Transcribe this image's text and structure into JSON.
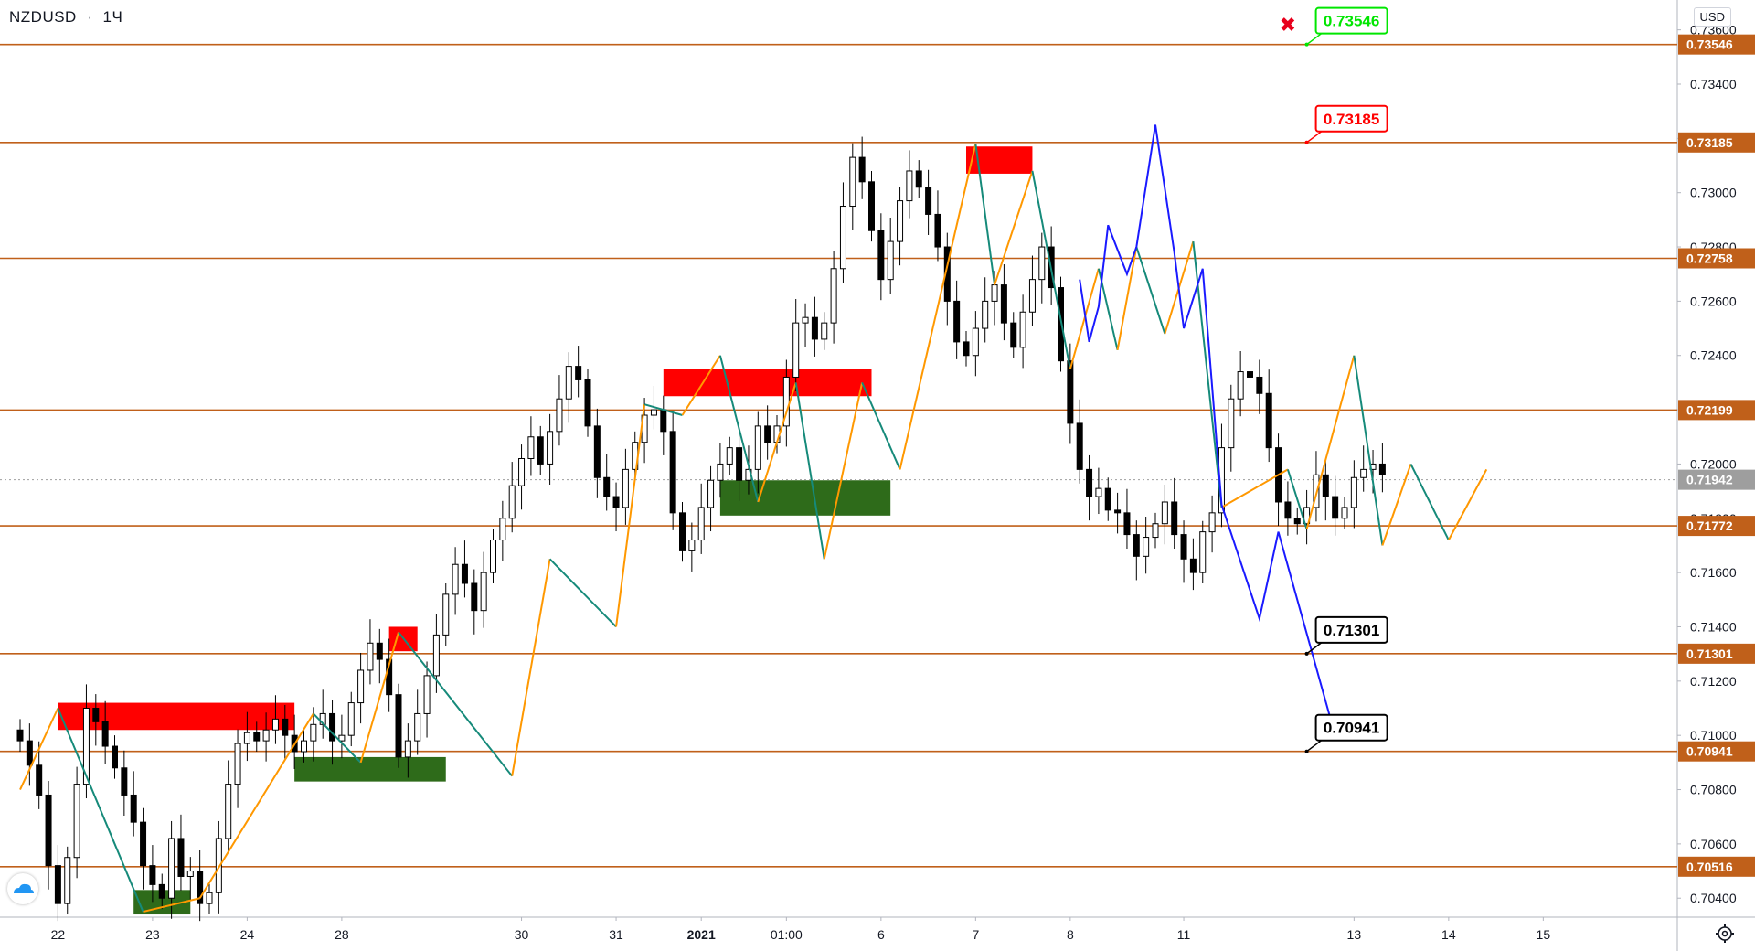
{
  "header": {
    "symbol": "NZDUSD",
    "separator": "·",
    "interval": "1Ч",
    "currency": "USD"
  },
  "colors": {
    "level_line": "#c0601a",
    "level_badge": "#c0601a",
    "up_leg": "#ff9800",
    "down_leg": "#168a7a",
    "forecast": "#1a1aff",
    "resistance_zone": "#ff0000",
    "support_zone": "#2e6b1a",
    "candle": "#000000",
    "current_price_badge": "#9e9e9e",
    "target_up": "#00e600",
    "target_stop": "#ff0000",
    "target_down": "#000000"
  },
  "chart_data": {
    "type": "candlestick",
    "instrument": "NZDUSD",
    "timeframe": "1Ч",
    "ylim": [
      0.7033,
      0.7371
    ],
    "y_ticks": [
      "0.70400",
      "0.70600",
      "0.70800",
      "0.71000",
      "0.71200",
      "0.71400",
      "0.71600",
      "0.71800",
      "0.72000",
      "0.72200",
      "0.72400",
      "0.72600",
      "0.72800",
      "0.73000",
      "0.73200",
      "0.73400",
      "0.73600"
    ],
    "x_ticks": [
      {
        "label": "22",
        "bar": 4
      },
      {
        "label": "23",
        "bar": 14
      },
      {
        "label": "24",
        "bar": 24
      },
      {
        "label": "28",
        "bar": 34
      },
      {
        "label": "30",
        "bar": 53
      },
      {
        "label": "31",
        "bar": 63
      },
      {
        "label": "2021",
        "bar": 72,
        "bold": true
      },
      {
        "label": "01:00",
        "bar": 81
      },
      {
        "label": "6",
        "bar": 91
      },
      {
        "label": "7",
        "bar": 101
      },
      {
        "label": "8",
        "bar": 111
      },
      {
        "label": "11",
        "bar": 123
      },
      {
        "label": "13",
        "bar": 141
      },
      {
        "label": "14",
        "bar": 151
      },
      {
        "label": "15",
        "bar": 161
      }
    ],
    "levels": [
      "0.73546",
      "0.73185",
      "0.72758",
      "0.72199",
      "0.71772",
      "0.71301",
      "0.70941",
      "0.70516"
    ],
    "current_price": "0.71942",
    "closes": [
      0.7098,
      0.7089,
      0.7078,
      0.7052,
      0.7038,
      0.7055,
      0.7082,
      0.711,
      0.7105,
      0.7096,
      0.7088,
      0.7078,
      0.7068,
      0.7052,
      0.7045,
      0.704,
      0.7062,
      0.7048,
      0.705,
      0.7038,
      0.7042,
      0.7062,
      0.7082,
      0.7097,
      0.7101,
      0.7098,
      0.7102,
      0.7106,
      0.71,
      0.7094,
      0.7098,
      0.7104,
      0.7108,
      0.7098,
      0.71,
      0.7112,
      0.7124,
      0.7134,
      0.7128,
      0.7115,
      0.7092,
      0.7098,
      0.7108,
      0.7122,
      0.7137,
      0.7152,
      0.7163,
      0.7156,
      0.7146,
      0.716,
      0.7172,
      0.718,
      0.7192,
      0.7202,
      0.721,
      0.72,
      0.7212,
      0.7224,
      0.7236,
      0.7231,
      0.7214,
      0.7195,
      0.7188,
      0.7184,
      0.7198,
      0.7208,
      0.7218,
      0.722,
      0.7212,
      0.7182,
      0.7168,
      0.7172,
      0.7184,
      0.7194,
      0.72,
      0.7206,
      0.7194,
      0.7198,
      0.7214,
      0.7208,
      0.7214,
      0.7232,
      0.7252,
      0.7254,
      0.7246,
      0.7252,
      0.7272,
      0.7295,
      0.7313,
      0.7304,
      0.7286,
      0.7268,
      0.7282,
      0.7297,
      0.7308,
      0.7302,
      0.7292,
      0.728,
      0.726,
      0.7245,
      0.724,
      0.725,
      0.726,
      0.7266,
      0.7252,
      0.7243,
      0.7256,
      0.7268,
      0.728,
      0.7265,
      0.7238,
      0.7215,
      0.7198,
      0.7188,
      0.7191,
      0.7183,
      0.7182,
      0.7174,
      0.7166,
      0.7173,
      0.7178,
      0.7186,
      0.7174,
      0.7165,
      0.716,
      0.7175,
      0.7182,
      0.7206,
      0.7224,
      0.7234,
      0.7232,
      0.7226,
      0.7206,
      0.7186,
      0.718,
      0.7178,
      0.7184,
      0.7196,
      0.7188,
      0.718,
      0.7184,
      0.7195,
      0.7198,
      0.72,
      0.7196
    ]
  },
  "zigzag": {
    "bars": [
      0,
      4,
      13,
      19,
      31,
      36,
      40,
      52,
      56,
      63,
      66,
      70,
      74,
      78,
      82,
      85,
      89,
      93,
      101,
      103,
      107,
      111,
      114,
      116,
      118,
      121,
      124,
      127,
      134,
      136,
      141,
      144,
      147,
      151,
      155
    ],
    "prices": [
      0.708,
      0.711,
      0.7035,
      0.704,
      0.7108,
      0.709,
      0.7138,
      0.7085,
      0.7165,
      0.714,
      0.7222,
      0.7218,
      0.724,
      0.7186,
      0.723,
      0.7165,
      0.723,
      0.7198,
      0.7318,
      0.7266,
      0.7308,
      0.7235,
      0.7272,
      0.7242,
      0.728,
      0.7248,
      0.7282,
      0.7184,
      0.7198,
      0.7176,
      0.724,
      0.717,
      0.72,
      0.7172,
      0.7198
    ]
  },
  "forecast_path": {
    "bars": [
      112,
      113,
      114,
      115,
      117,
      118,
      120,
      122,
      123,
      125,
      127,
      131,
      133,
      139
    ],
    "prices": [
      0.7268,
      0.7245,
      0.7258,
      0.7288,
      0.727,
      0.728,
      0.7325,
      0.7278,
      0.725,
      0.7272,
      0.7185,
      0.7143,
      0.7175,
      0.71
    ]
  },
  "zones": [
    {
      "kind": "resistance",
      "from_bar": 4,
      "to_bar": 29,
      "top": 0.7112,
      "bottom": 0.7102
    },
    {
      "kind": "support",
      "from_bar": 29,
      "to_bar": 45,
      "top": 0.7092,
      "bottom": 0.7083
    },
    {
      "kind": "resistance",
      "from_bar": 39,
      "to_bar": 42,
      "top": 0.714,
      "bottom": 0.7131
    },
    {
      "kind": "support",
      "from_bar": 12,
      "to_bar": 18,
      "top": 0.7043,
      "bottom": 0.7034
    },
    {
      "kind": "resistance",
      "from_bar": 68,
      "to_bar": 90,
      "top": 0.7235,
      "bottom": 0.7225
    },
    {
      "kind": "support",
      "from_bar": 74,
      "to_bar": 92,
      "top": 0.7194,
      "bottom": 0.7181
    },
    {
      "kind": "resistance",
      "from_bar": 100,
      "to_bar": 107,
      "top": 0.7317,
      "bottom": 0.7307
    }
  ],
  "targets": {
    "up": {
      "label": "0.73546",
      "anchor_bar": 136,
      "price": 0.73546
    },
    "stop": {
      "label": "0.73185",
      "anchor_bar": 136,
      "price": 0.73185
    },
    "down1": {
      "label": "0.71301",
      "anchor_bar": 136,
      "price": 0.71301
    },
    "down2": {
      "label": "0.70941",
      "anchor_bar": 136,
      "price": 0.70941
    }
  },
  "cancel_mark": {
    "symbol": "✖",
    "bar": 134,
    "price": 0.73618
  }
}
